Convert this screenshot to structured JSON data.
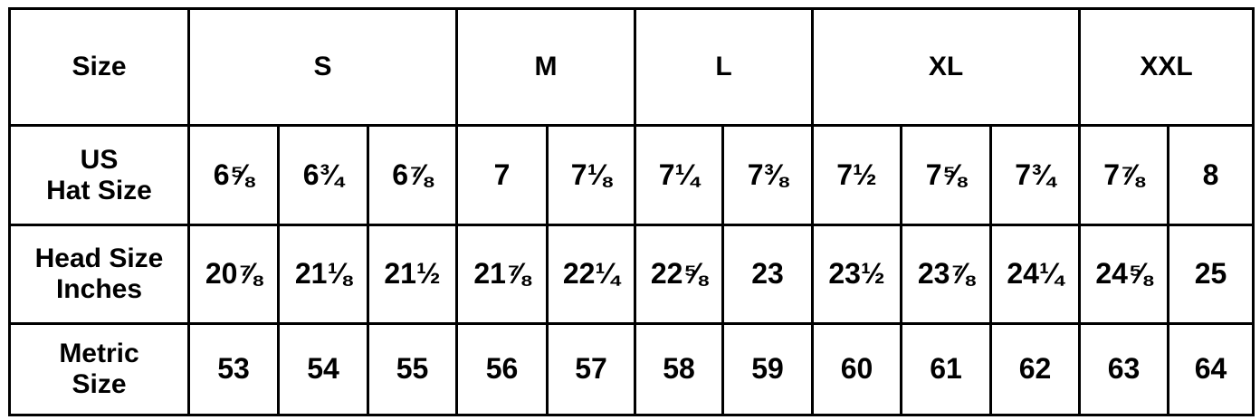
{
  "header": {
    "label": "Size",
    "groups": [
      {
        "label": "S",
        "span": 3
      },
      {
        "label": "M",
        "span": 2
      },
      {
        "label": "L",
        "span": 2
      },
      {
        "label": "XL",
        "span": 3
      },
      {
        "label": "XXL",
        "span": 2
      }
    ]
  },
  "rows": [
    {
      "label_lines": [
        "US",
        "Hat Size"
      ],
      "values": [
        "6⅝",
        "6¾",
        "6⅞",
        "7",
        "7⅛",
        "7¼",
        "7⅜",
        "7½",
        "7⅝",
        "7¾",
        "7⅞",
        "8"
      ]
    },
    {
      "label_lines": [
        "Head Size",
        "Inches"
      ],
      "values": [
        "20⅞",
        "21⅛",
        "21½",
        "21⅞",
        "22¼",
        "22⅝",
        "23",
        "23½",
        "23⅞",
        "24¼",
        "24⅝",
        "25"
      ]
    },
    {
      "label_lines": [
        "Metric",
        "Size"
      ],
      "values": [
        "53",
        "54",
        "55",
        "56",
        "57",
        "58",
        "59",
        "60",
        "61",
        "62",
        "63",
        "64"
      ]
    }
  ],
  "colors": {
    "border": "#000000",
    "text": "#000000",
    "background": "#ffffff"
  }
}
